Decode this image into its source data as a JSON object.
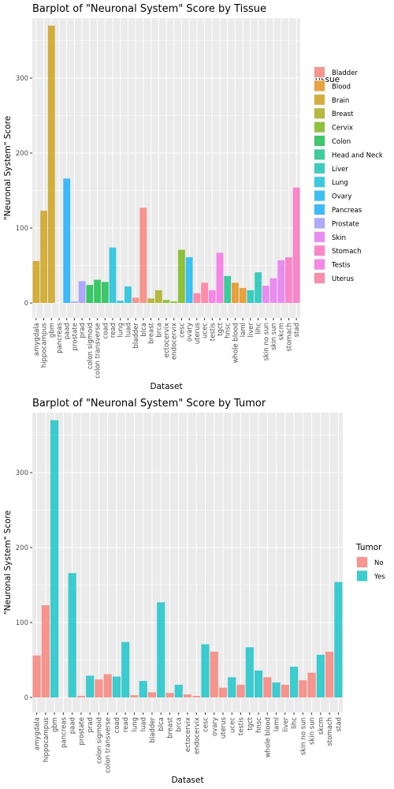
{
  "chart_data": [
    {
      "type": "bar",
      "title": "Barplot of \"Neuronal System\" Score by Tissue",
      "xlabel": "Dataset",
      "ylabel": "\"Neuronal System\" Score",
      "ylim": [
        -20,
        380
      ],
      "yticks": [
        0,
        100,
        200,
        300
      ],
      "grid": true,
      "legend": {
        "title": "Tissue",
        "position": "right",
        "entries": [
          {
            "label": "Bladder",
            "color": "#F8766D"
          },
          {
            "label": "Blood",
            "color": "#E58700"
          },
          {
            "label": "Brain",
            "color": "#C99800"
          },
          {
            "label": "Breast",
            "color": "#A3A500"
          },
          {
            "label": "Cervix",
            "color": "#6BB100"
          },
          {
            "label": "Colon",
            "color": "#00BA38"
          },
          {
            "label": "Head and Neck",
            "color": "#00BF7D"
          },
          {
            "label": "Liver",
            "color": "#00C0AF"
          },
          {
            "label": "Lung",
            "color": "#00BCD8"
          },
          {
            "label": "Ovary",
            "color": "#00B0F6"
          },
          {
            "label": "Pancreas",
            "color": "#00A5FF"
          },
          {
            "label": "Prostate",
            "color": "#9590FF"
          },
          {
            "label": "Skin",
            "color": "#E76BF3"
          },
          {
            "label": "Stomach",
            "color": "#FF62BC"
          },
          {
            "label": "Testis",
            "color": "#F564E3"
          },
          {
            "label": "Uterus",
            "color": "#FF6C91"
          }
        ]
      },
      "categories": [
        "amygdala",
        "hippocampus",
        "gbm",
        "pancreas",
        "paad",
        "prostate",
        "prad",
        "colon sigmoid",
        "colon transverse",
        "coad",
        "read",
        "lung",
        "luad",
        "bladder",
        "blca",
        "breast",
        "brca",
        "ectocervix",
        "endocervix",
        "cesc",
        "ovary",
        "uterus",
        "ucec",
        "testis",
        "tgct",
        "hnsc",
        "whole blood",
        "laml",
        "liver",
        "lihc",
        "skin no sun",
        "skin sun",
        "skcm",
        "stomach",
        "stad"
      ],
      "values": [
        56,
        123,
        370,
        0,
        166,
        2,
        29,
        24,
        31,
        28,
        74,
        3,
        22,
        7,
        127,
        6,
        17,
        4,
        2,
        71,
        61,
        13,
        27,
        17,
        67,
        36,
        27,
        20,
        17,
        41,
        23,
        33,
        57,
        61,
        154
      ],
      "groups": [
        "Brain",
        "Brain",
        "Brain",
        "Pancreas",
        "Pancreas",
        "Prostate",
        "Prostate",
        "Colon",
        "Colon",
        "Colon",
        "Lung",
        "Lung",
        "Lung",
        "Bladder",
        "Bladder",
        "Breast",
        "Breast",
        "Cervix",
        "Cervix",
        "Cervix",
        "Ovary",
        "Uterus",
        "Uterus",
        "Testis",
        "Testis",
        "Head and Neck",
        "Blood",
        "Blood",
        "Liver",
        "Liver",
        "Skin",
        "Skin",
        "Skin",
        "Stomach",
        "Stomach"
      ]
    },
    {
      "type": "bar",
      "title": "Barplot of \"Neuronal System\" Score by Tumor",
      "xlabel": "Dataset",
      "ylabel": "\"Neuronal System\" Score",
      "ylim": [
        -20,
        380
      ],
      "yticks": [
        0,
        100,
        200,
        300
      ],
      "grid": true,
      "legend": {
        "title": "Tumor",
        "position": "right",
        "entries": [
          {
            "label": "No",
            "color": "#F8766D"
          },
          {
            "label": "Yes",
            "color": "#00BFC4"
          }
        ]
      },
      "categories": [
        "amygdala",
        "hippocampus",
        "gbm",
        "pancreas",
        "paad",
        "prostate",
        "prad",
        "colon sigmoid",
        "colon transverse",
        "coad",
        "read",
        "lung",
        "luad",
        "bladder",
        "blca",
        "breast",
        "brca",
        "ectocervix",
        "endocervix",
        "cesc",
        "ovary",
        "uterus",
        "ucec",
        "testis",
        "tgct",
        "hnsc",
        "whole blood",
        "laml",
        "liver",
        "lihc",
        "skin no sun",
        "skin sun",
        "skcm",
        "stomach",
        "stad"
      ],
      "values": [
        56,
        123,
        370,
        0,
        166,
        2,
        29,
        24,
        31,
        28,
        74,
        3,
        22,
        7,
        127,
        6,
        17,
        4,
        2,
        71,
        61,
        13,
        27,
        17,
        67,
        36,
        27,
        20,
        17,
        41,
        23,
        33,
        57,
        61,
        154
      ],
      "groups": [
        "No",
        "No",
        "Yes",
        "No",
        "Yes",
        "No",
        "Yes",
        "No",
        "No",
        "Yes",
        "Yes",
        "No",
        "Yes",
        "No",
        "Yes",
        "No",
        "Yes",
        "No",
        "No",
        "Yes",
        "No",
        "No",
        "Yes",
        "No",
        "Yes",
        "Yes",
        "No",
        "Yes",
        "No",
        "Yes",
        "No",
        "No",
        "Yes",
        "No",
        "Yes"
      ]
    }
  ]
}
